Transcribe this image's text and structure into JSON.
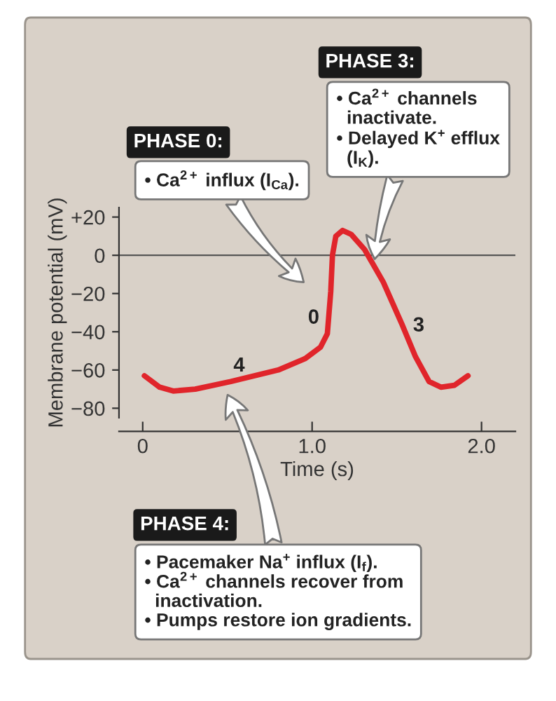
{
  "chart_data": {
    "type": "line",
    "xlabel": "Time (s)",
    "ylabel": "Membrane potential (mV)",
    "x": [
      0.01,
      0.1,
      0.18,
      0.31,
      0.52,
      0.8,
      0.96,
      1.05,
      1.09,
      1.11,
      1.12,
      1.14,
      1.18,
      1.23,
      1.31,
      1.42,
      1.53,
      1.61,
      1.69,
      1.76,
      1.84,
      1.92
    ],
    "series": [
      {
        "color": "#e0252b",
        "values": [
          -63,
          -69,
          -71,
          -70,
          -66,
          -60,
          -54,
          -48,
          -41,
          -19,
          0,
          10,
          13,
          11,
          3,
          -14,
          -36,
          -53,
          -66,
          -69,
          -68,
          -63
        ]
      }
    ],
    "xlim": [
      -0.14,
      2.2
    ],
    "ylim": [
      -85,
      25
    ],
    "xticks": [
      0,
      {
        "value": 1,
        "label": "1.0"
      },
      {
        "value": 2,
        "label": "2.0"
      }
    ],
    "yticks": [
      {
        "value": 20,
        "label": "+20"
      },
      0,
      {
        "value": -20,
        "label": "−20"
      },
      {
        "value": -40,
        "label": "−40"
      },
      {
        "value": -60,
        "label": "−60"
      },
      {
        "value": -80,
        "label": "−80"
      }
    ],
    "ref_lines": [
      {
        "axis": "y",
        "value": 0,
        "color": "#555555"
      }
    ],
    "annotations": [
      "4",
      "0",
      "3",
      "PHASE 0:",
      "• Ca$^{2+}$ influx (I$_{Ca}$).",
      "PHASE 3:",
      "• Ca$^{2+}$ channels\n  inactivate.\n• Delayed K$^{+}$ efflux\n  (I$_{K}$).",
      "PHASE 4:",
      "• Pacemaker Na$^{+}$ influx (I$_{f}$).\n• Ca$^{2+}$ channels recover from\n  inactivation.\n• Pumps restore ion gradients."
    ]
  }
}
